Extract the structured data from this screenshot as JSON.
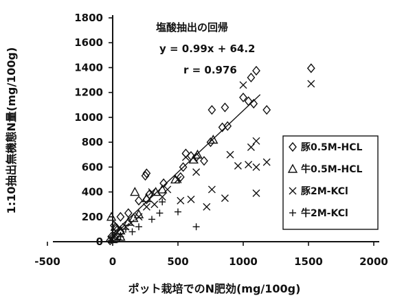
{
  "chart_data": {
    "type": "scatter",
    "title": "塩酸抽出の回帰",
    "equation": "y = 0.99x + 64.2",
    "r_text": "r = 0.976",
    "xlabel": "ポット栽培でのN肥効(mg/100g)",
    "ylabel": "1:10抽出無機態N量(mg/100g)",
    "xlim": [
      -500,
      2000
    ],
    "ylim": [
      0,
      1800
    ],
    "xticks": [
      -500,
      0,
      500,
      1000,
      1500,
      2000
    ],
    "yticks": [
      0,
      200,
      400,
      600,
      800,
      1000,
      1200,
      1400,
      1600,
      1800
    ],
    "x_tick_labels": [
      "-500",
      "0",
      "500",
      "1000",
      "1500",
      "2000"
    ],
    "y_tick_labels": [
      "0",
      "200",
      "400",
      "600",
      "800",
      "1000",
      "1200",
      "1400",
      "1600",
      "1800"
    ],
    "regression": {
      "slope": 0.99,
      "intercept": 64.2,
      "x_range": [
        -20,
        1130
      ]
    },
    "legend_position": "right",
    "series": [
      {
        "name": "豚0.5M-HCL",
        "marker": "diamond",
        "points": [
          [
            1520,
            1395
          ],
          [
            1100,
            1375
          ],
          [
            1060,
            1320
          ],
          [
            1000,
            1160
          ],
          [
            1040,
            1130
          ],
          [
            1180,
            1060
          ],
          [
            1080,
            1110
          ],
          [
            860,
            1080
          ],
          [
            760,
            1060
          ],
          [
            880,
            930
          ],
          [
            840,
            920
          ],
          [
            750,
            800
          ],
          [
            560,
            710
          ],
          [
            600,
            690
          ],
          [
            640,
            680
          ],
          [
            700,
            650
          ],
          [
            540,
            600
          ],
          [
            520,
            520
          ],
          [
            260,
            550
          ],
          [
            250,
            530
          ],
          [
            390,
            470
          ],
          [
            280,
            380
          ],
          [
            260,
            340
          ],
          [
            200,
            330
          ],
          [
            120,
            230
          ],
          [
            60,
            200
          ],
          [
            10,
            130
          ],
          [
            30,
            110
          ],
          [
            60,
            80
          ],
          [
            -10,
            40
          ],
          [
            -20,
            10
          ]
        ]
      },
      {
        "name": "牛0.5M-HCL",
        "marker": "triangle",
        "points": [
          [
            -10,
            200
          ],
          [
            20,
            120
          ],
          [
            60,
            90
          ],
          [
            120,
            160
          ],
          [
            160,
            190
          ],
          [
            200,
            220
          ],
          [
            170,
            400
          ],
          [
            260,
            350
          ],
          [
            330,
            400
          ],
          [
            380,
            420
          ],
          [
            480,
            500
          ],
          [
            620,
            660
          ],
          [
            650,
            700
          ],
          [
            770,
            820
          ],
          [
            60,
            40
          ],
          [
            0,
            20
          ]
        ]
      },
      {
        "name": "豚2M-KCl",
        "marker": "x",
        "points": [
          [
            1520,
            1270
          ],
          [
            1000,
            1260
          ],
          [
            1100,
            810
          ],
          [
            1060,
            760
          ],
          [
            900,
            700
          ],
          [
            1180,
            640
          ],
          [
            1100,
            600
          ],
          [
            960,
            610
          ],
          [
            1040,
            620
          ],
          [
            760,
            420
          ],
          [
            720,
            280
          ],
          [
            600,
            340
          ],
          [
            560,
            680
          ],
          [
            860,
            350
          ],
          [
            1100,
            390
          ],
          [
            640,
            560
          ],
          [
            520,
            330
          ],
          [
            500,
            500
          ],
          [
            420,
            420
          ],
          [
            380,
            360
          ],
          [
            300,
            400
          ],
          [
            320,
            300
          ],
          [
            260,
            280
          ],
          [
            200,
            200
          ],
          [
            140,
            150
          ],
          [
            100,
            120
          ],
          [
            60,
            100
          ],
          [
            20,
            60
          ],
          [
            -10,
            20
          ],
          [
            30,
            30
          ]
        ]
      },
      {
        "name": "牛2M-KCl",
        "marker": "plus",
        "points": [
          [
            640,
            120
          ],
          [
            500,
            240
          ],
          [
            380,
            320
          ],
          [
            360,
            230
          ],
          [
            300,
            180
          ],
          [
            200,
            120
          ],
          [
            100,
            100
          ],
          [
            60,
            40
          ],
          [
            20,
            60
          ],
          [
            -10,
            10
          ],
          [
            40,
            20
          ],
          [
            150,
            80
          ]
        ]
      }
    ]
  }
}
